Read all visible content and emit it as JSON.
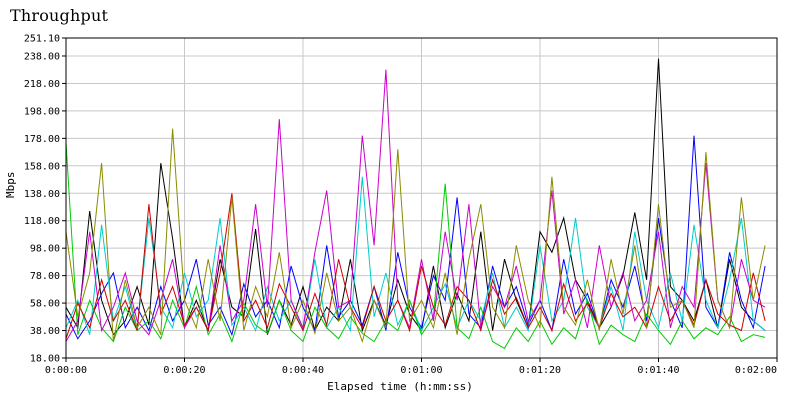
{
  "chart_data": {
    "type": "line",
    "title": "Throughput",
    "xlabel": "Elapsed time (h:mm:ss)",
    "ylabel": "Mbps",
    "xlim": [
      0,
      120
    ],
    "ylim": [
      18.0,
      251.1
    ],
    "xticks": [
      0,
      20,
      40,
      60,
      80,
      100,
      120
    ],
    "xtick_labels": [
      "0:00:00",
      "0:00:20",
      "0:00:40",
      "0:01:00",
      "0:01:20",
      "0:01:40",
      "0:02:00"
    ],
    "yticks": [
      18,
      38,
      58,
      78,
      98,
      118,
      138,
      158,
      178,
      198,
      218,
      238,
      251.1
    ],
    "ytick_labels": [
      "18.00",
      "38.00",
      "58.00",
      "78.00",
      "98.00",
      "118.00",
      "138.00",
      "158.00",
      "178.00",
      "198.00",
      "218.00",
      "238.00",
      "251.10"
    ],
    "grid": true,
    "series": [
      {
        "color": "#000000",
        "x": [
          0,
          2,
          4,
          6,
          8,
          10,
          12,
          14,
          16,
          18,
          20,
          22,
          24,
          26,
          28,
          30,
          32,
          34,
          36,
          38,
          40,
          42,
          44,
          46,
          48,
          50,
          52,
          54,
          56,
          58,
          60,
          62,
          64,
          66,
          68,
          70,
          72,
          74,
          76,
          78,
          80,
          82,
          84,
          86,
          88,
          90,
          92,
          94,
          96,
          98,
          100,
          102,
          104,
          106,
          108,
          110,
          112,
          114,
          116,
          118
        ],
        "values": [
          55,
          40,
          125,
          60,
          35,
          45,
          70,
          42,
          160,
          105,
          40,
          60,
          38,
          90,
          55,
          48,
          112,
          35,
          60,
          42,
          70,
          38,
          55,
          45,
          90,
          38,
          60,
          42,
          75,
          50,
          38,
          85,
          40,
          65,
          45,
          110,
          38,
          90,
          60,
          40,
          110,
          95,
          120,
          75,
          60,
          40,
          55,
          78,
          124,
          75,
          236,
          70,
          60,
          45,
          75,
          40,
          90,
          55,
          45,
          38
        ]
      },
      {
        "color": "#0000ff",
        "x": [
          0,
          2,
          4,
          6,
          8,
          10,
          12,
          14,
          16,
          18,
          20,
          22,
          24,
          26,
          28,
          30,
          32,
          34,
          36,
          38,
          40,
          42,
          44,
          46,
          48,
          50,
          52,
          54,
          56,
          58,
          60,
          62,
          64,
          66,
          68,
          70,
          72,
          74,
          76,
          78,
          80,
          82,
          84,
          86,
          88,
          90,
          92,
          94,
          96,
          98,
          100,
          102,
          104,
          106,
          108,
          110,
          112,
          114,
          116,
          118
        ],
        "values": [
          50,
          32,
          45,
          65,
          80,
          40,
          55,
          38,
          70,
          45,
          60,
          90,
          42,
          55,
          35,
          72,
          48,
          60,
          40,
          85,
          55,
          38,
          100,
          48,
          60,
          42,
          70,
          38,
          95,
          55,
          40,
          78,
          60,
          135,
          50,
          40,
          85,
          55,
          70,
          42,
          60,
          38,
          90,
          50,
          65,
          40,
          75,
          55,
          85,
          45,
          120,
          60,
          40,
          180,
          55,
          40,
          95,
          60,
          40,
          85
        ]
      },
      {
        "color": "#00cccc",
        "x": [
          0,
          2,
          4,
          6,
          8,
          10,
          12,
          14,
          16,
          18,
          20,
          22,
          24,
          26,
          28,
          30,
          32,
          34,
          36,
          38,
          40,
          42,
          44,
          46,
          48,
          50,
          52,
          54,
          56,
          58,
          60,
          62,
          64,
          66,
          68,
          70,
          72,
          74,
          76,
          78,
          80,
          82,
          84,
          86,
          88,
          90,
          92,
          94,
          96,
          98,
          100,
          102,
          104,
          106,
          108,
          110,
          112,
          114,
          116,
          118
        ],
        "values": [
          40,
          60,
          35,
          115,
          45,
          70,
          38,
          120,
          55,
          40,
          80,
          48,
          60,
          120,
          42,
          55,
          38,
          70,
          45,
          60,
          38,
          90,
          40,
          55,
          38,
          150,
          48,
          80,
          42,
          60,
          38,
          55,
          72,
          40,
          60,
          45,
          80,
          40,
          55,
          38,
          100,
          45,
          60,
          120,
          55,
          40,
          70,
          38,
          110,
          60,
          40,
          80,
          45,
          115,
          60,
          40,
          75,
          120,
          45,
          38
        ]
      },
      {
        "color": "#00cc00",
        "x": [
          0,
          2,
          4,
          6,
          8,
          10,
          12,
          14,
          16,
          18,
          20,
          22,
          24,
          26,
          28,
          30,
          32,
          34,
          36,
          38,
          40,
          42,
          44,
          46,
          48,
          50,
          52,
          54,
          56,
          58,
          60,
          62,
          64,
          66,
          68,
          70,
          72,
          74,
          76,
          78,
          80,
          82,
          84,
          86,
          88,
          90,
          92,
          94,
          96,
          98,
          100,
          102,
          104,
          106,
          108,
          110,
          112,
          114,
          116,
          118
        ],
        "values": [
          175,
          35,
          60,
          40,
          30,
          55,
          38,
          45,
          32,
          60,
          40,
          70,
          35,
          50,
          30,
          58,
          42,
          36,
          60,
          38,
          30,
          55,
          40,
          32,
          48,
          36,
          30,
          45,
          38,
          60,
          35,
          48,
          145,
          40,
          32,
          55,
          30,
          25,
          40,
          30,
          45,
          28,
          40,
          32,
          60,
          28,
          42,
          35,
          30,
          50,
          38,
          28,
          45,
          32,
          40,
          35,
          48,
          30,
          35,
          33
        ]
      },
      {
        "color": "#cc00cc",
        "x": [
          0,
          2,
          4,
          6,
          8,
          10,
          12,
          14,
          16,
          18,
          20,
          22,
          24,
          26,
          28,
          30,
          32,
          34,
          36,
          38,
          40,
          42,
          44,
          46,
          48,
          50,
          52,
          54,
          56,
          58,
          60,
          62,
          64,
          66,
          68,
          70,
          72,
          74,
          76,
          78,
          80,
          82,
          84,
          86,
          88,
          90,
          92,
          94,
          96,
          98,
          100,
          102,
          104,
          106,
          108,
          110,
          112,
          114,
          116,
          118
        ],
        "values": [
          30,
          45,
          110,
          38,
          55,
          80,
          45,
          35,
          60,
          90,
          40,
          55,
          38,
          100,
          45,
          60,
          130,
          55,
          192,
          60,
          40,
          95,
          140,
          55,
          60,
          180,
          100,
          228,
          60,
          40,
          90,
          45,
          110,
          60,
          130,
          40,
          70,
          55,
          85,
          45,
          60,
          140,
          50,
          75,
          40,
          100,
          55,
          80,
          45,
          60,
          110,
          40,
          70,
          55,
          160,
          60,
          40,
          90,
          60,
          55
        ]
      },
      {
        "color": "#cc0000",
        "x": [
          0,
          2,
          4,
          6,
          8,
          10,
          12,
          14,
          16,
          18,
          20,
          22,
          24,
          26,
          28,
          30,
          32,
          34,
          36,
          38,
          40,
          42,
          44,
          46,
          48,
          50,
          52,
          54,
          56,
          58,
          60,
          62,
          64,
          66,
          68,
          70,
          72,
          74,
          76,
          78,
          80,
          82,
          84,
          86,
          88,
          90,
          92,
          94,
          96,
          98,
          100,
          102,
          104,
          106,
          108,
          110,
          112,
          114,
          116,
          118
        ],
        "values": [
          32,
          58,
          40,
          75,
          45,
          60,
          38,
          130,
          50,
          70,
          42,
          55,
          38,
          80,
          138,
          45,
          60,
          40,
          72,
          55,
          38,
          65,
          42,
          90,
          55,
          40,
          70,
          45,
          60,
          38,
          85,
          55,
          42,
          70,
          60,
          38,
          75,
          50,
          62,
          40,
          55,
          38,
          72,
          45,
          58,
          40,
          65,
          48,
          55,
          40,
          70,
          45,
          60,
          42,
          75,
          50,
          42,
          38,
          80,
          45
        ]
      },
      {
        "color": "#8b8b00",
        "x": [
          0,
          2,
          4,
          6,
          8,
          10,
          12,
          14,
          16,
          18,
          20,
          22,
          24,
          26,
          28,
          30,
          32,
          34,
          36,
          38,
          40,
          42,
          44,
          46,
          48,
          50,
          52,
          54,
          56,
          58,
          60,
          62,
          64,
          66,
          68,
          70,
          72,
          74,
          76,
          78,
          80,
          82,
          84,
          86,
          88,
          90,
          92,
          94,
          96,
          98,
          100,
          102,
          104,
          106,
          108,
          110,
          112,
          114,
          116,
          118
        ],
        "values": [
          110,
          48,
          80,
          160,
          30,
          75,
          40,
          55,
          35,
          185,
          60,
          40,
          90,
          45,
          135,
          38,
          70,
          48,
          95,
          40,
          60,
          36,
          80,
          45,
          55,
          30,
          60,
          40,
          170,
          45,
          60,
          40,
          80,
          35,
          90,
          130,
          55,
          40,
          100,
          60,
          40,
          150,
          55,
          42,
          75,
          38,
          90,
          50,
          100,
          40,
          130,
          55,
          60,
          40,
          168,
          60,
          40,
          135,
          60,
          100
        ]
      }
    ]
  }
}
